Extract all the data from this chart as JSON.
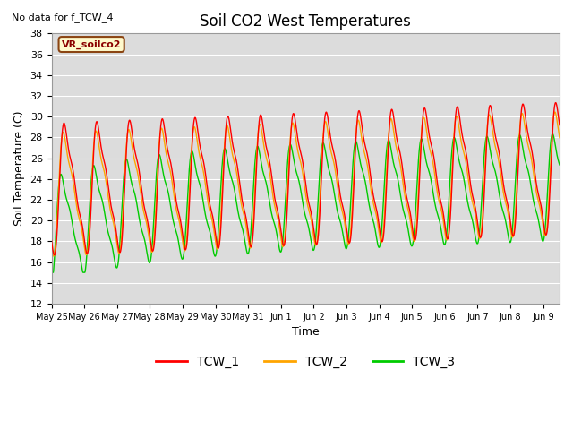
{
  "title": "Soil CO2 West Temperatures",
  "no_data_text": "No data for f_TCW_4",
  "annotation_text": "VR_soilco2",
  "xlabel": "Time",
  "ylabel": "Soil Temperature (C)",
  "ylim": [
    12,
    38
  ],
  "yticks": [
    12,
    14,
    16,
    18,
    20,
    22,
    24,
    26,
    28,
    30,
    32,
    34,
    36,
    38
  ],
  "background_color": "#dcdcdc",
  "legend_colors": [
    "#ff0000",
    "#ffa500",
    "#00cc00"
  ],
  "legend_labels": [
    "TCW_1",
    "TCW_2",
    "TCW_3"
  ],
  "xtick_labels": [
    "May 25",
    "May 26",
    "May 27",
    "May 28",
    "May 29",
    "May 30",
    "May 31",
    "Jun 1",
    "Jun 2",
    "Jun 3",
    "Jun 4",
    "Jun 5",
    "Jun 6",
    "Jun 7",
    "Jun 8",
    "Jun 9"
  ]
}
